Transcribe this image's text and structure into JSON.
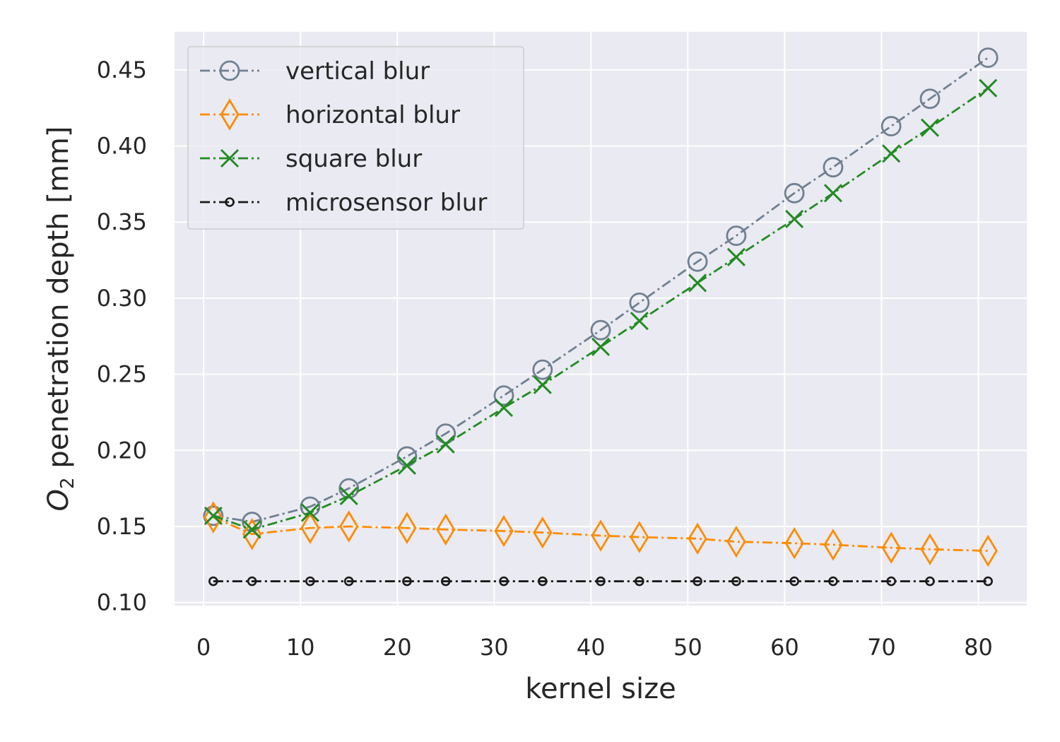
{
  "chart_data": {
    "type": "line",
    "title": "",
    "xlabel": "kernel size",
    "ylabel_main": "O",
    "ylabel_sub": "2",
    "ylabel_rest": " penetration depth [mm]",
    "xlim": [
      -3,
      85
    ],
    "ylim": [
      0.098,
      0.475
    ],
    "xticks": [
      0,
      10,
      20,
      30,
      40,
      50,
      60,
      70,
      80
    ],
    "xtick_labels": [
      "0",
      "10",
      "20",
      "30",
      "40",
      "50",
      "60",
      "70",
      "80"
    ],
    "yticks": [
      0.1,
      0.15,
      0.2,
      0.25,
      0.3,
      0.35,
      0.4,
      0.45
    ],
    "ytick_labels": [
      "0.10",
      "0.15",
      "0.20",
      "0.25",
      "0.30",
      "0.35",
      "0.40",
      "0.45"
    ],
    "grid": true,
    "legend_position": "top-left",
    "background_color": "#eaeaf2",
    "x": [
      1,
      5,
      11,
      15,
      21,
      25,
      31,
      35,
      41,
      45,
      51,
      55,
      61,
      65,
      71,
      75,
      81
    ],
    "series": [
      {
        "name": "vertical blur",
        "color": "#708090",
        "marker": "circle",
        "values": [
          0.157,
          0.153,
          0.163,
          0.175,
          0.196,
          0.211,
          0.236,
          0.253,
          0.279,
          0.297,
          0.324,
          0.341,
          0.369,
          0.386,
          0.413,
          0.431,
          0.458
        ]
      },
      {
        "name": "horizontal blur",
        "color": "#ff8c00",
        "marker": "diamond",
        "values": [
          0.156,
          0.145,
          0.149,
          0.15,
          0.149,
          0.148,
          0.147,
          0.146,
          0.144,
          0.143,
          0.142,
          0.14,
          0.139,
          0.138,
          0.136,
          0.135,
          0.134
        ]
      },
      {
        "name": "square blur",
        "color": "#228b22",
        "marker": "x",
        "values": [
          0.157,
          0.148,
          0.159,
          0.17,
          0.19,
          0.204,
          0.228,
          0.243,
          0.268,
          0.285,
          0.31,
          0.327,
          0.352,
          0.369,
          0.395,
          0.412,
          0.438
        ]
      },
      {
        "name": "microsensor blur",
        "color": "#1a1a1a",
        "marker": "small-circle",
        "values": [
          0.114,
          0.114,
          0.114,
          0.114,
          0.114,
          0.114,
          0.114,
          0.114,
          0.114,
          0.114,
          0.114,
          0.114,
          0.114,
          0.114,
          0.114,
          0.114,
          0.114
        ]
      }
    ]
  }
}
